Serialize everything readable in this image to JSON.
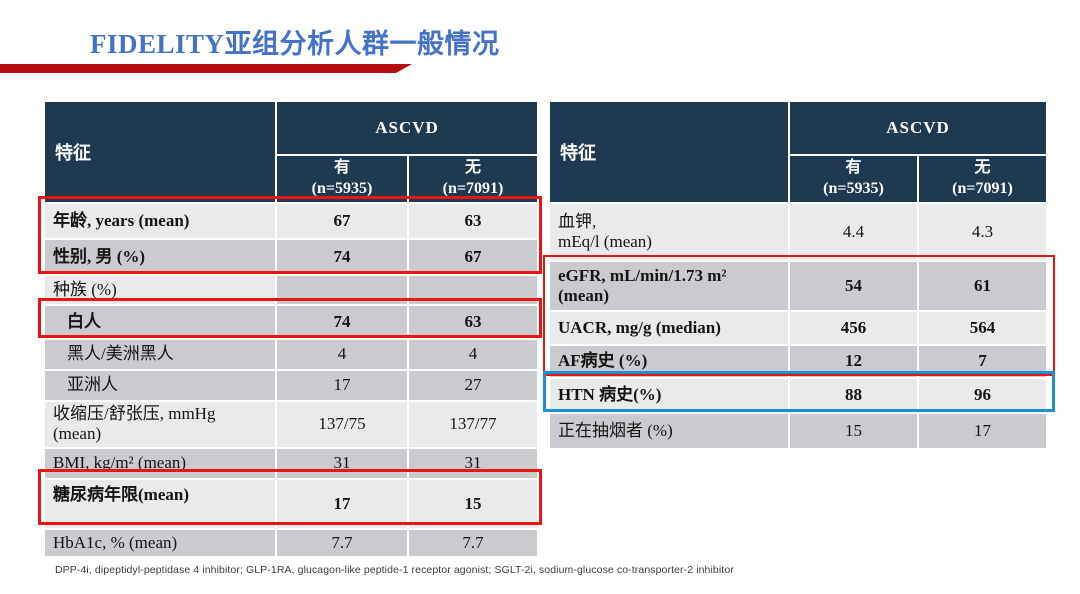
{
  "title": "FIDELITY亚组分析人群一般情况",
  "colors": {
    "header_bg": "#1f3a50",
    "row_light": "#e9eaec",
    "row_dark": "#c9cbce",
    "accent_red": "#e81510",
    "accent_blue": "#1e8fd4",
    "bar_red": "#b60d12",
    "title_blue": "#4472c4"
  },
  "tables": [
    {
      "side": "left",
      "header": {
        "feature": "特征",
        "group": "ASCVD",
        "col_has": "有\n(n=5935)",
        "col_no": "无\n(n=7091)"
      },
      "rows": [
        {
          "label": "年龄, years (mean)",
          "v1": "67",
          "v2": "63",
          "bold": true,
          "shade": "light"
        },
        {
          "label": "性别, 男 (%)",
          "v1": "74",
          "v2": "67",
          "bold": true,
          "shade": "dark"
        },
        {
          "label": "种族 (%)",
          "v1": "",
          "v2": "",
          "shade": "dark",
          "labelShade": "light"
        },
        {
          "label": "白人",
          "v1": "74",
          "v2": "63",
          "bold": true,
          "indent": true,
          "shade": "dark"
        },
        {
          "label": "黑人/美洲黑人",
          "v1": "4",
          "v2": "4",
          "indent": true,
          "shade": "dark"
        },
        {
          "label": "亚洲人",
          "v1": "17",
          "v2": "27",
          "indent": true,
          "shade": "dark"
        },
        {
          "label": "收缩压/舒张压, mmHg\n(mean)",
          "v1": "137/75",
          "v2": "137/77",
          "shade": "light"
        },
        {
          "label": "BMI, kg/m² (mean)",
          "v1": "31",
          "v2": "31",
          "shade": "dark"
        },
        {
          "label": "糖尿病年限(mean)",
          "v1": "17",
          "v2": "15",
          "bold": true,
          "shade": "light"
        },
        {
          "label": "HbA1c, % (mean)",
          "v1": "7.7",
          "v2": "7.7",
          "shade": "dark"
        }
      ]
    },
    {
      "side": "right",
      "header": {
        "feature": "特征",
        "group": "ASCVD",
        "col_has": "有\n(n=5935)",
        "col_no": "无\n(n=7091)"
      },
      "rows": [
        {
          "label": "血钾,\nmEq/l (mean)",
          "v1": "4.4",
          "v2": "4.3",
          "shade": "light"
        },
        {
          "label": "eGFR, mL/min/1.73 m²\n(mean)",
          "v1": "54",
          "v2": "61",
          "bold": true,
          "shade": "dark"
        },
        {
          "label": "UACR, mg/g (median)",
          "v1": "456",
          "v2": "564",
          "bold": true,
          "shade": "light"
        },
        {
          "label": "AF病史 (%)",
          "v1": "12",
          "v2": "7",
          "bold": true,
          "shade": "dark"
        },
        {
          "label": "HTN 病史(%)",
          "v1": "88",
          "v2": "96",
          "bold": true,
          "shade": "light"
        },
        {
          "label": "正在抽烟者 (%)",
          "v1": "15",
          "v2": "17",
          "shade": "dark"
        }
      ]
    }
  ],
  "highlights": [
    {
      "color": "red",
      "table": "left",
      "rows": [
        "年龄, years (mean)",
        "性别, 男 (%)"
      ]
    },
    {
      "color": "red",
      "table": "left",
      "rows": [
        "白人"
      ]
    },
    {
      "color": "red",
      "table": "left",
      "rows": [
        "糖尿病年限(mean)"
      ]
    },
    {
      "color": "red",
      "table": "right",
      "rows": [
        "eGFR, mL/min/1.73 m² (mean)",
        "UACR, mg/g (median)",
        "AF病史 (%)"
      ]
    },
    {
      "color": "blue",
      "table": "right",
      "rows": [
        "HTN 病史(%)"
      ]
    }
  ],
  "footnote": "DPP-4i, dipeptidyl-peptidase 4 inhibitor; GLP-1RA, glucagon-like peptide-1 receptor agonist; SGLT-2i, sodium-glucose co-transporter-2 inhibitor"
}
